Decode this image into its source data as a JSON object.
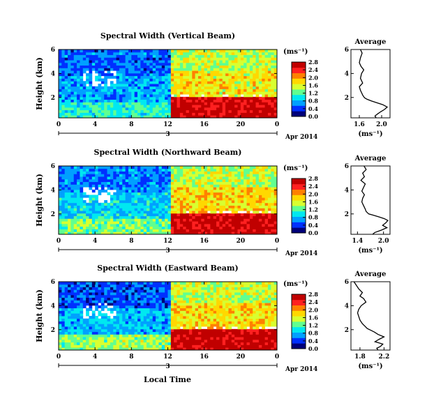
{
  "figure": {
    "xlabel": "Local Time",
    "date_label": "Apr 2014",
    "colorbar_unit": "(ms⁻¹)",
    "profile_xlabel": "(ms⁻¹)",
    "colormap": [
      "#00007a",
      "#0030ff",
      "#00a0ff",
      "#00e8f0",
      "#60ff90",
      "#d8ff30",
      "#ffd800",
      "#ff8000",
      "#ff2020",
      "#c00000"
    ]
  },
  "chart_data": [
    {
      "type": "heatmap",
      "title": "Spectral Width (Vertical Beam)",
      "ylabel": "Height (km)",
      "xlabel": "Local Time",
      "x_ticks": [
        "0",
        "4",
        "8",
        "12",
        "16",
        "20",
        "0"
      ],
      "x_sub_label": "3",
      "y_ticks": [
        "2",
        "4",
        "6"
      ],
      "xlim": [
        0,
        24
      ],
      "ylim": [
        0.3,
        6.0
      ],
      "colorbar": {
        "ticks": [
          "0.0",
          "0.4",
          "0.8",
          "1.2",
          "1.6",
          "2.0",
          "2.4",
          "2.8"
        ],
        "range": [
          0,
          2.8
        ]
      },
      "regions": {
        "morning_upper": 0.55,
        "morning_mid": 0.75,
        "morning_low": 1.1,
        "afternoon_upper": 1.5,
        "afternoon_mid": 1.7,
        "afternoon_boundary_layer": 2.7,
        "boundary_layer_top_km": 2.0
      }
    },
    {
      "type": "line",
      "title": "Average",
      "ylabel": "",
      "xlabel": "(ms⁻¹)",
      "x_ticks": [
        "1.6",
        "2.0"
      ],
      "y_ticks": [
        "2",
        "4",
        "6"
      ],
      "xlim": [
        1.45,
        2.15
      ],
      "ylim": [
        0.3,
        6.0
      ],
      "x": [
        1.62,
        1.65,
        1.62,
        1.6,
        1.63,
        1.68,
        1.64,
        1.62,
        1.66,
        1.6,
        1.62,
        1.64,
        1.66,
        1.68,
        1.7,
        1.74,
        1.82,
        1.92,
        2.02,
        2.1,
        2.05,
        1.98,
        1.92,
        1.88,
        1.9
      ],
      "y": [
        6.0,
        5.7,
        5.3,
        4.9,
        4.6,
        4.3,
        4.0,
        3.6,
        3.2,
        2.9,
        2.6,
        2.4,
        2.2,
        2.05,
        1.95,
        1.85,
        1.7,
        1.55,
        1.4,
        1.2,
        1.0,
        0.8,
        0.6,
        0.45,
        0.3
      ]
    },
    {
      "type": "heatmap",
      "title": "Spectral Width (Northward Beam)",
      "ylabel": "Height (km)",
      "xlabel": "Local Time",
      "x_ticks": [
        "0",
        "4",
        "8",
        "12",
        "16",
        "20",
        "0"
      ],
      "x_sub_label": "3",
      "y_ticks": [
        "2",
        "4",
        "6"
      ],
      "xlim": [
        0,
        24
      ],
      "ylim": [
        0.3,
        6.0
      ],
      "colorbar": {
        "ticks": [
          "0.0",
          "0.4",
          "0.8",
          "1.2",
          "1.6",
          "2.0",
          "2.4",
          "2.8"
        ],
        "range": [
          0,
          2.8
        ]
      },
      "regions": {
        "morning_upper": 0.6,
        "morning_mid": 0.9,
        "morning_low": 1.3,
        "afternoon_upper": 1.5,
        "afternoon_mid": 1.8,
        "afternoon_boundary_layer": 2.7,
        "boundary_layer_top_km": 2.0
      }
    },
    {
      "type": "line",
      "title": "Average",
      "ylabel": "",
      "xlabel": "(ms⁻¹)",
      "x_ticks": [
        "1.4",
        "2.0"
      ],
      "y_ticks": [
        "2",
        "4",
        "6"
      ],
      "xlim": [
        1.25,
        2.15
      ],
      "ylim": [
        0.3,
        6.0
      ],
      "x": [
        1.55,
        1.6,
        1.52,
        1.56,
        1.48,
        1.58,
        1.54,
        1.5,
        1.56,
        1.52,
        1.5,
        1.54,
        1.58,
        1.6,
        1.66,
        1.76,
        1.9,
        2.02,
        2.1,
        2.05,
        1.98,
        2.08,
        1.95,
        1.8,
        1.75
      ],
      "y": [
        6.0,
        5.7,
        5.4,
        5.1,
        4.8,
        4.5,
        4.2,
        3.9,
        3.6,
        3.3,
        3.0,
        2.7,
        2.4,
        2.2,
        2.0,
        1.9,
        1.75,
        1.6,
        1.45,
        1.25,
        1.05,
        0.85,
        0.65,
        0.45,
        0.3
      ]
    },
    {
      "type": "heatmap",
      "title": "Spectral Width (Eastward Beam)",
      "ylabel": "Height (km)",
      "xlabel": "Local Time",
      "x_ticks": [
        "0",
        "4",
        "8",
        "12",
        "16",
        "20",
        "0"
      ],
      "x_sub_label": "3",
      "y_ticks": [
        "2",
        "4",
        "6"
      ],
      "xlim": [
        0,
        24
      ],
      "ylim": [
        0.3,
        6.0
      ],
      "colorbar": {
        "ticks": [
          "0.0",
          "0.4",
          "0.8",
          "1.2",
          "1.6",
          "2.0",
          "2.4",
          "2.8"
        ],
        "range": [
          0,
          2.8
        ]
      },
      "regions": {
        "morning_upper": 0.5,
        "morning_mid": 0.8,
        "morning_low": 1.4,
        "afternoon_upper": 1.5,
        "afternoon_mid": 1.8,
        "afternoon_boundary_layer": 2.7,
        "boundary_layer_top_km": 2.0
      }
    },
    {
      "type": "line",
      "title": "Average",
      "ylabel": "",
      "xlabel": "(ms⁻¹)",
      "x_ticks": [
        "1.8",
        "2.2"
      ],
      "y_ticks": [
        "2",
        "4",
        "6"
      ],
      "xlim": [
        1.65,
        2.3
      ],
      "ylim": [
        0.3,
        6.0
      ],
      "x": [
        1.7,
        1.74,
        1.78,
        1.84,
        1.8,
        1.86,
        1.9,
        1.82,
        1.78,
        1.76,
        1.78,
        1.8,
        1.84,
        1.88,
        1.92,
        1.98,
        2.04,
        2.1,
        2.2,
        2.12,
        2.05,
        2.18,
        2.14,
        2.08,
        2.1
      ],
      "y": [
        6.0,
        5.7,
        5.4,
        5.1,
        4.8,
        4.6,
        4.3,
        4.0,
        3.7,
        3.4,
        3.1,
        2.8,
        2.5,
        2.3,
        2.1,
        1.95,
        1.8,
        1.6,
        1.4,
        1.2,
        1.0,
        0.8,
        0.6,
        0.45,
        0.3
      ]
    }
  ]
}
